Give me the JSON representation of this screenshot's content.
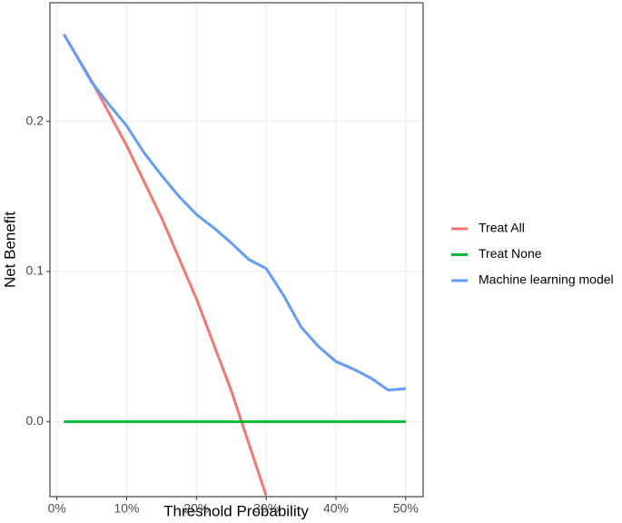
{
  "chart_data": {
    "type": "line",
    "xlabel": "Threshold Probability",
    "ylabel": "Net Benefit",
    "xlim": [
      -0.01,
      0.525
    ],
    "ylim": [
      -0.05,
      0.279
    ],
    "xticks": [
      {
        "value": 0,
        "label": "0%"
      },
      {
        "value": 0.1,
        "label": "10%"
      },
      {
        "value": 0.2,
        "label": "20%"
      },
      {
        "value": 0.3,
        "label": "30%"
      },
      {
        "value": 0.4,
        "label": "40%"
      },
      {
        "value": 0.5,
        "label": "50%"
      }
    ],
    "yticks": [
      {
        "value": 0,
        "label": "0.0"
      },
      0.1,
      0.2
    ],
    "grid": true,
    "legend": "right",
    "series": [
      {
        "name": "Treat All",
        "color": "#f8766d",
        "x": [
          0.01,
          0.05,
          0.1,
          0.15,
          0.2,
          0.25,
          0.3
        ],
        "values": [
          0.258,
          0.2267,
          0.1838,
          0.1358,
          0.0818,
          0.0205,
          -0.0494
        ]
      },
      {
        "name": "Treat None",
        "color": "#00ba38",
        "x": [
          0.01,
          0.5
        ],
        "values": [
          0,
          0
        ]
      },
      {
        "name": "Machine learning model",
        "color": "#619cff",
        "x": [
          0.01,
          0.05,
          0.075,
          0.1,
          0.125,
          0.15,
          0.175,
          0.2,
          0.225,
          0.25,
          0.275,
          0.3,
          0.325,
          0.35,
          0.375,
          0.4,
          0.425,
          0.45,
          0.475,
          0.5
        ],
        "values": [
          0.258,
          0.226,
          0.211,
          0.197,
          0.179,
          0.164,
          0.15,
          0.138,
          0.129,
          0.119,
          0.108,
          0.102,
          0.084,
          0.063,
          0.05,
          0.04,
          0.035,
          0.029,
          0.021,
          0.022
        ]
      }
    ]
  }
}
